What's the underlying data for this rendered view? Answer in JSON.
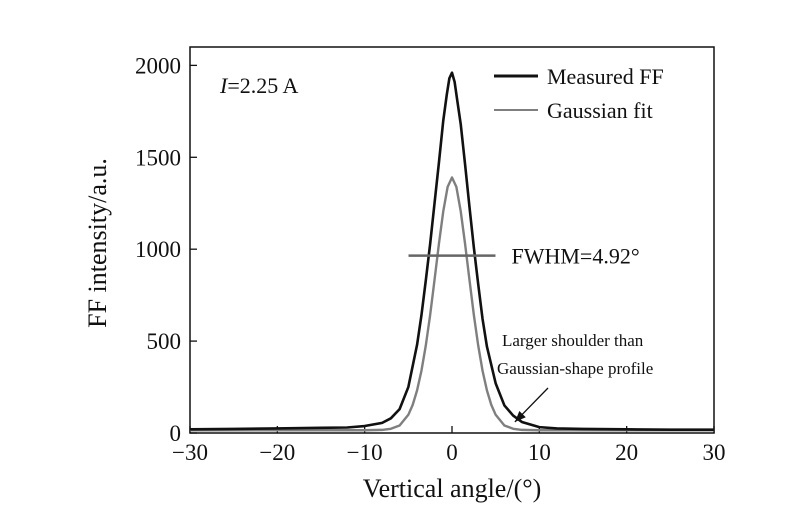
{
  "chart_data": {
    "type": "line",
    "title": "",
    "xlabel": "Vertical angle/(°)",
    "ylabel": "FF intensity/a.u.",
    "xlim": [
      -30,
      30
    ],
    "ylim": [
      0,
      2100
    ],
    "x_ticks": [
      -30,
      -20,
      -10,
      0,
      10,
      20,
      30
    ],
    "x_tick_labels": [
      "−30",
      "−20",
      "−10",
      "0",
      "10",
      "20",
      "30"
    ],
    "y_ticks": [
      0,
      500,
      1000,
      1500,
      2000
    ],
    "y_tick_labels": [
      "0",
      "500",
      "1000",
      "1500",
      "2000"
    ],
    "grid": false,
    "legend_position": "top-right",
    "condition_label": {
      "variable": "I",
      "value": "=2.25 A"
    },
    "fwhm": {
      "label": "FWHM=4.92°",
      "x_start": -2.46,
      "x_end": 2.46,
      "y": 965
    },
    "shoulder_note": {
      "lines": [
        "Larger shoulder than",
        "Gaussian-shape profile"
      ],
      "arrow_to": [
        7.2,
        60
      ]
    },
    "series": [
      {
        "name": "Measured FF",
        "color": "#111111",
        "x": [
          -30,
          -25,
          -20,
          -15,
          -12,
          -10,
          -8,
          -7,
          -6,
          -5,
          -4,
          -3.5,
          -3,
          -2.5,
          -2,
          -1.5,
          -1,
          -0.6,
          -0.3,
          0,
          0.3,
          0.6,
          1,
          1.5,
          2,
          2.5,
          3,
          3.5,
          4,
          5,
          6,
          7,
          8,
          10,
          12,
          15,
          20,
          25,
          30
        ],
        "y": [
          20,
          22,
          25,
          28,
          30,
          38,
          55,
          80,
          130,
          250,
          480,
          640,
          830,
          1030,
          1250,
          1470,
          1700,
          1840,
          1930,
          1960,
          1910,
          1810,
          1680,
          1460,
          1230,
          1010,
          810,
          620,
          470,
          270,
          150,
          95,
          60,
          32,
          25,
          22,
          20,
          18,
          18
        ]
      },
      {
        "name": "Gaussian fit",
        "color": "#7f7f7f",
        "x": [
          -30,
          -20,
          -10,
          -8,
          -7,
          -6,
          -5,
          -4.5,
          -4,
          -3.5,
          -3,
          -2.5,
          -2,
          -1.5,
          -1,
          -0.5,
          0,
          0.5,
          1,
          1.5,
          2,
          2.5,
          3,
          3.5,
          4,
          4.5,
          5,
          6,
          7,
          8,
          10,
          20,
          30
        ],
        "y": [
          15,
          15,
          15,
          17,
          23,
          41,
          99,
          153,
          232,
          338,
          476,
          643,
          833,
          1028,
          1206,
          1339,
          1390,
          1339,
          1206,
          1028,
          833,
          643,
          476,
          338,
          232,
          153,
          99,
          41,
          23,
          17,
          15,
          15,
          15
        ]
      }
    ]
  }
}
